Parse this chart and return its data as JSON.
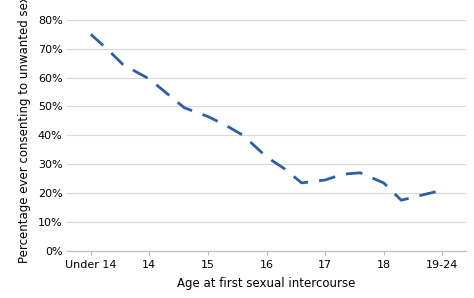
{
  "x_labels": [
    "Under 14",
    "14",
    "15",
    "16",
    "17",
    "18",
    "19-24"
  ],
  "x_positions": [
    0,
    1,
    2,
    3,
    4,
    5,
    6
  ],
  "x_pts": [
    0,
    0.3,
    0.55,
    1.0,
    1.3,
    1.6,
    2.0,
    2.3,
    2.6,
    3.0,
    3.3,
    3.6,
    4.0,
    4.3,
    4.6,
    5.0,
    5.3,
    5.6,
    6.0
  ],
  "y_pts": [
    0.75,
    0.695,
    0.645,
    0.595,
    0.545,
    0.495,
    0.465,
    0.435,
    0.4,
    0.325,
    0.285,
    0.235,
    0.245,
    0.265,
    0.27,
    0.235,
    0.175,
    0.19,
    0.21
  ],
  "line_color": "#2E5FA3",
  "line_width": 2.0,
  "dash_on": 6,
  "dash_off": 4,
  "xlabel": "Age at first sexual intercourse",
  "ylabel": "Percentage ever consenting to unwanted sex",
  "ylim": [
    0,
    0.84
  ],
  "yticks": [
    0,
    0.1,
    0.2,
    0.3,
    0.4,
    0.5,
    0.6,
    0.7,
    0.8
  ],
  "ytick_labels": [
    "0%",
    "10%",
    "20%",
    "30%",
    "40%",
    "50%",
    "60%",
    "70%",
    "80%"
  ],
  "background_color": "#ffffff",
  "grid_color": "#d9d9d9",
  "axis_label_fontsize": 8.5,
  "tick_fontsize": 8,
  "xlim": [
    -0.4,
    6.4
  ]
}
